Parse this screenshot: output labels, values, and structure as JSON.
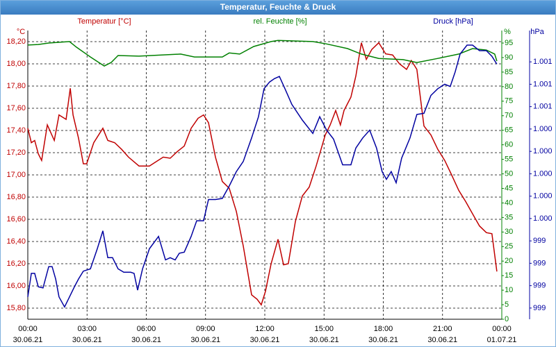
{
  "chart_data": {
    "type": "line",
    "title": "Temperatur, Feuchte & Druck",
    "y_label": "Temperatur [°C]",
    "y2_label": "rel. Feuchte [%]",
    "y3_label": "Druck [hPa]",
    "y_unit": "°C",
    "y2_unit": "%",
    "y3_unit": "hPa",
    "xlim": [
      0,
      24
    ],
    "xticks": [
      {
        "value": 0,
        "label": "00:00"
      },
      {
        "value": 3,
        "label": "03:00"
      },
      {
        "value": 6,
        "label": "06:00"
      },
      {
        "value": 9,
        "label": "09:00"
      },
      {
        "value": 12,
        "label": "12:00"
      },
      {
        "value": 15,
        "label": "15:00"
      },
      {
        "value": 18,
        "label": "18:00"
      },
      {
        "value": 21,
        "label": "21:00"
      },
      {
        "value": 24,
        "label": "00:00"
      }
    ],
    "xtick_dates": [
      "30.06.21",
      "30.06.21",
      "30.06.21",
      "30.06.21",
      "30.06.21",
      "30.06.21",
      "30.06.21",
      "30.06.21",
      "01.07.21"
    ],
    "ylim": [
      15.7,
      18.3
    ],
    "yticks": [
      {
        "value": 15.8,
        "label": "15,80"
      },
      {
        "value": 16.0,
        "label": "16,00"
      },
      {
        "value": 16.2,
        "label": "16,20"
      },
      {
        "value": 16.4,
        "label": "16,40"
      },
      {
        "value": 16.6,
        "label": "16,60"
      },
      {
        "value": 16.8,
        "label": "16,80"
      },
      {
        "value": 17.0,
        "label": "17,00"
      },
      {
        "value": 17.2,
        "label": "17,20"
      },
      {
        "value": 17.4,
        "label": "17,40"
      },
      {
        "value": 17.6,
        "label": "17,60"
      },
      {
        "value": 17.8,
        "label": "17,80"
      },
      {
        "value": 18.0,
        "label": "18,00"
      },
      {
        "value": 18.2,
        "label": "18,20"
      }
    ],
    "y2lim": [
      0,
      99.3
    ],
    "y2ticks": [
      0,
      5,
      10,
      15,
      20,
      25,
      30,
      35,
      40,
      45,
      50,
      55,
      60,
      65,
      70,
      75,
      80,
      85,
      90,
      95
    ],
    "y3lim": [
      998.7,
      1001.28
    ],
    "y3ticks": [
      {
        "value": 998.8,
        "label": "999"
      },
      {
        "value": 999.0,
        "label": "999"
      },
      {
        "value": 999.2,
        "label": "999"
      },
      {
        "value": 999.4,
        "label": "999"
      },
      {
        "value": 999.6,
        "label": "1.000"
      },
      {
        "value": 999.8,
        "label": "1.000"
      },
      {
        "value": 1000.0,
        "label": "1.000"
      },
      {
        "value": 1000.2,
        "label": "1.000"
      },
      {
        "value": 1000.4,
        "label": "1.000"
      },
      {
        "value": 1000.6,
        "label": "1.001"
      },
      {
        "value": 1000.8,
        "label": "1.001"
      },
      {
        "value": 1001.0,
        "label": "1.001"
      }
    ],
    "grid": true,
    "series": [
      {
        "name": "Temperatur [°C]",
        "color": "#c00000",
        "axis": "y",
        "x": [
          0,
          0.18,
          0.35,
          0.53,
          0.7,
          0.99,
          1.34,
          1.58,
          1.94,
          2.15,
          2.29,
          2.57,
          2.81,
          2.98,
          3.34,
          3.8,
          4.05,
          4.4,
          4.75,
          5.1,
          5.63,
          6.16,
          6.51,
          6.86,
          7.21,
          7.57,
          7.92,
          8.27,
          8.62,
          8.9,
          9.15,
          9.5,
          9.85,
          10.2,
          10.56,
          10.91,
          11.33,
          11.61,
          11.82,
          12.03,
          12.32,
          12.67,
          12.95,
          13.19,
          13.55,
          13.9,
          14.25,
          14.6,
          15.06,
          15.31,
          15.59,
          15.83,
          16.01,
          16.36,
          16.61,
          16.89,
          17.14,
          17.42,
          17.77,
          18.12,
          18.47,
          18.82,
          19.18,
          19.42,
          19.7,
          20.06,
          20.41,
          20.76,
          21.11,
          21.46,
          21.82,
          22.17,
          22.52,
          22.87,
          23.22,
          23.5,
          23.75
        ],
        "values": [
          17.42,
          17.29,
          17.31,
          17.19,
          17.13,
          17.45,
          17.31,
          17.54,
          17.5,
          17.78,
          17.54,
          17.33,
          17.1,
          17.1,
          17.29,
          17.42,
          17.31,
          17.29,
          17.23,
          17.16,
          17.08,
          17.08,
          17.12,
          17.16,
          17.15,
          17.21,
          17.26,
          17.42,
          17.51,
          17.54,
          17.47,
          17.16,
          16.94,
          16.88,
          16.67,
          16.36,
          15.92,
          15.88,
          15.83,
          15.95,
          16.2,
          16.42,
          16.19,
          16.2,
          16.58,
          16.81,
          16.89,
          17.08,
          17.36,
          17.45,
          17.58,
          17.45,
          17.58,
          17.7,
          17.89,
          18.19,
          18.04,
          18.13,
          18.19,
          18.09,
          18.08,
          18.0,
          17.95,
          18.03,
          17.95,
          17.44,
          17.36,
          17.23,
          17.13,
          17.0,
          16.86,
          16.76,
          16.65,
          16.54,
          16.48,
          16.47,
          16.13
        ]
      },
      {
        "name": "rel. Feuchte [%]",
        "color": "#008000",
        "axis": "y2",
        "x": [
          0,
          0.53,
          1.06,
          2.11,
          2.46,
          3.17,
          3.87,
          4.22,
          4.57,
          5.63,
          7.74,
          8.44,
          9.85,
          10.2,
          10.73,
          11.44,
          12.32,
          12.67,
          14.43,
          15.13,
          16.19,
          16.89,
          17.77,
          19.0,
          19.7,
          20.76,
          21.82,
          22.52,
          23.22,
          23.64,
          23.75
        ],
        "values": [
          94.3,
          94.5,
          95.0,
          95.5,
          93.6,
          90.2,
          87.1,
          88.3,
          90.7,
          90.5,
          91.2,
          90.2,
          90.2,
          91.6,
          91.2,
          93.8,
          95.5,
          95.9,
          95.5,
          94.7,
          93.1,
          91.2,
          89.7,
          89.3,
          88.3,
          89.7,
          91.2,
          93.1,
          92.6,
          91.2,
          88.8
        ]
      },
      {
        "name": "Druck [hPa]",
        "color": "#0000a0",
        "axis": "y3",
        "x": [
          0,
          0.18,
          0.35,
          0.53,
          0.77,
          1.06,
          1.23,
          1.41,
          1.58,
          1.86,
          2.11,
          2.36,
          2.57,
          2.81,
          3.17,
          3.52,
          3.8,
          4.05,
          4.29,
          4.57,
          4.86,
          5.21,
          5.38,
          5.56,
          5.81,
          6.16,
          6.62,
          6.97,
          7.21,
          7.46,
          7.67,
          7.92,
          8.27,
          8.55,
          8.9,
          9.15,
          9.5,
          9.85,
          10.2,
          10.56,
          10.91,
          11.33,
          11.68,
          11.96,
          12.24,
          12.49,
          12.74,
          13.02,
          13.37,
          13.9,
          14.43,
          14.78,
          15.13,
          15.48,
          15.94,
          16.36,
          16.61,
          16.96,
          17.31,
          17.66,
          17.94,
          18.16,
          18.4,
          18.65,
          18.93,
          19.35,
          19.7,
          20.06,
          20.41,
          20.76,
          21.11,
          21.39,
          21.64,
          21.89,
          22.24,
          22.52,
          22.87,
          23.22,
          23.5,
          23.75
        ],
        "values": [
          998.9,
          999.11,
          999.11,
          998.99,
          998.98,
          999.17,
          999.17,
          999.06,
          998.9,
          998.81,
          998.9,
          998.99,
          999.06,
          999.13,
          999.15,
          999.33,
          999.49,
          999.25,
          999.25,
          999.15,
          999.12,
          999.12,
          999.11,
          998.96,
          999.15,
          999.33,
          999.44,
          999.23,
          999.25,
          999.23,
          999.29,
          999.3,
          999.44,
          999.58,
          999.58,
          999.77,
          999.77,
          999.78,
          999.89,
          1000.02,
          1000.11,
          1000.32,
          1000.51,
          1000.76,
          1000.82,
          1000.85,
          1000.87,
          1000.76,
          1000.62,
          1000.48,
          1000.36,
          1000.51,
          1000.39,
          1000.31,
          1000.08,
          1000.08,
          1000.23,
          1000.32,
          1000.39,
          1000.23,
          1000.02,
          999.95,
          1000.02,
          999.92,
          1000.14,
          1000.32,
          1000.53,
          1000.54,
          1000.7,
          1000.76,
          1000.8,
          1000.78,
          1000.91,
          1001.07,
          1001.15,
          1001.15,
          1001.1,
          1001.1,
          1001.05,
          1000.98
        ]
      }
    ]
  }
}
